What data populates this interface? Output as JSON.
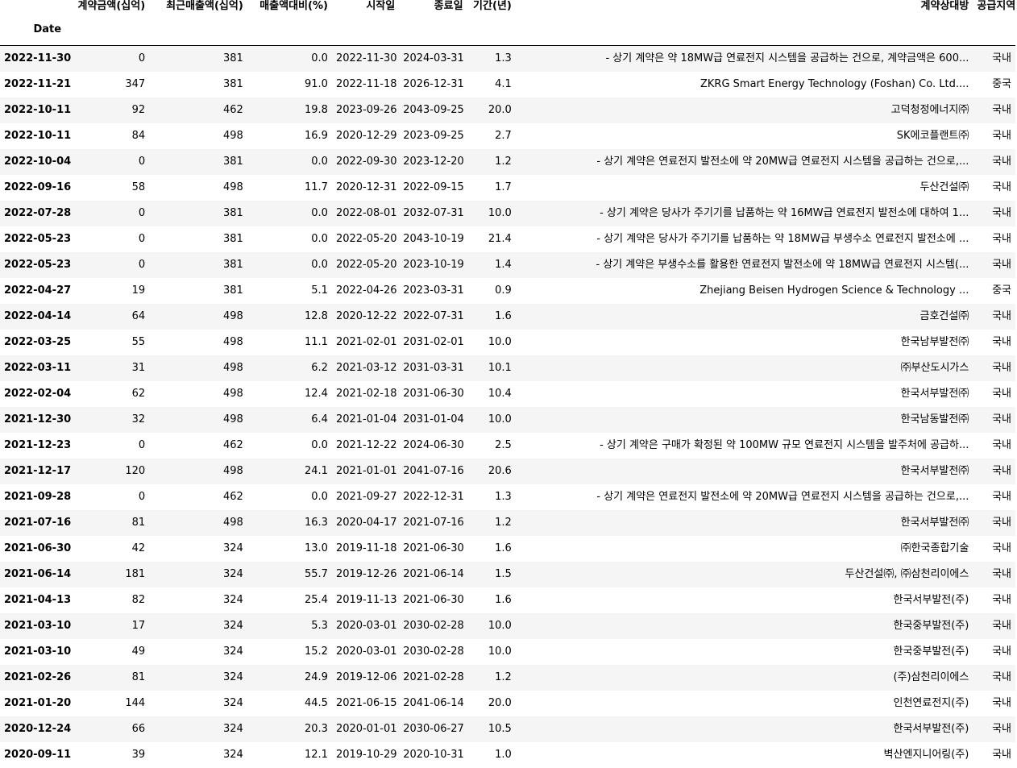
{
  "table": {
    "columns": [
      "계약금액(십억)",
      "최근매출액(십억)",
      "매출액대비(%)",
      "시작일",
      "종료일",
      "기간(년)",
      "계약상대방",
      "공급지역"
    ],
    "index_name": "Date",
    "rows": [
      [
        "2022-11-30",
        "0",
        "381",
        "0.0",
        "2022-11-30",
        "2024-03-31",
        "1.3",
        "- 상기 계약은 약 18MW급 연료전지 시스템을 공급하는 건으로, 계약금액은 600...",
        "국내"
      ],
      [
        "2022-11-21",
        "347",
        "381",
        "91.0",
        "2022-11-18",
        "2026-12-31",
        "4.1",
        "ZKRG Smart Energy Technology (Foshan) Co. Ltd....",
        "중국"
      ],
      [
        "2022-10-11",
        "92",
        "462",
        "19.8",
        "2023-09-26",
        "2043-09-25",
        "20.0",
        "고덕청정에너지㈜",
        "국내"
      ],
      [
        "2022-10-11",
        "84",
        "498",
        "16.9",
        "2020-12-29",
        "2023-09-25",
        "2.7",
        "SK에코플랜트㈜",
        "국내"
      ],
      [
        "2022-10-04",
        "0",
        "381",
        "0.0",
        "2022-09-30",
        "2023-12-20",
        "1.2",
        "- 상기 계약은 연료전지 발전소에 약 20MW급 연료전지 시스템을 공급하는 건으로,...",
        "국내"
      ],
      [
        "2022-09-16",
        "58",
        "498",
        "11.7",
        "2020-12-31",
        "2022-09-15",
        "1.7",
        "두산건설㈜",
        "국내"
      ],
      [
        "2022-07-28",
        "0",
        "381",
        "0.0",
        "2022-08-01",
        "2032-07-31",
        "10.0",
        "- 상기 계약은 당사가 주기기를 납품하는 약 16MW급 연료전지 발전소에 대하여 1...",
        "국내"
      ],
      [
        "2022-05-23",
        "0",
        "381",
        "0.0",
        "2022-05-20",
        "2043-10-19",
        "21.4",
        "- 상기 계약은 당사가 주기기를 납품하는 약 18MW급 부생수소 연료전지 발전소에 ...",
        "국내"
      ],
      [
        "2022-05-23",
        "0",
        "381",
        "0.0",
        "2022-05-20",
        "2023-10-19",
        "1.4",
        "- 상기 계약은 부생수소를 활용한 연료전지 발전소에 약 18MW급 연료전지 시스템(...",
        "국내"
      ],
      [
        "2022-04-27",
        "19",
        "381",
        "5.1",
        "2022-04-26",
        "2023-03-31",
        "0.9",
        "Zhejiang Beisen Hydrogen Science & Technology ...",
        "중국"
      ],
      [
        "2022-04-14",
        "64",
        "498",
        "12.8",
        "2020-12-22",
        "2022-07-31",
        "1.6",
        "금호건설㈜",
        "국내"
      ],
      [
        "2022-03-25",
        "55",
        "498",
        "11.1",
        "2021-02-01",
        "2031-02-01",
        "10.0",
        "한국남부발전㈜",
        "국내"
      ],
      [
        "2022-03-11",
        "31",
        "498",
        "6.2",
        "2021-03-12",
        "2031-03-31",
        "10.1",
        "㈜부산도시가스",
        "국내"
      ],
      [
        "2022-02-04",
        "62",
        "498",
        "12.4",
        "2021-02-18",
        "2031-06-30",
        "10.4",
        "한국서부발전㈜",
        "국내"
      ],
      [
        "2021-12-30",
        "32",
        "498",
        "6.4",
        "2021-01-04",
        "2031-01-04",
        "10.0",
        "한국남동발전㈜",
        "국내"
      ],
      [
        "2021-12-23",
        "0",
        "462",
        "0.0",
        "2021-12-22",
        "2024-06-30",
        "2.5",
        "- 상기 계약은 구매가 확정된 약 100MW 규모 연료전지 시스템을 발주처에 공급하...",
        "국내"
      ],
      [
        "2021-12-17",
        "120",
        "498",
        "24.1",
        "2021-01-01",
        "2041-07-16",
        "20.6",
        "한국서부발전㈜",
        "국내"
      ],
      [
        "2021-09-28",
        "0",
        "462",
        "0.0",
        "2021-09-27",
        "2022-12-31",
        "1.3",
        "- 상기 계약은 연료전지 발전소에 약 20MW급 연료전지 시스템을 공급하는 건으로,...",
        "국내"
      ],
      [
        "2021-07-16",
        "81",
        "498",
        "16.3",
        "2020-04-17",
        "2021-07-16",
        "1.2",
        "한국서부발전㈜",
        "국내"
      ],
      [
        "2021-06-30",
        "42",
        "324",
        "13.0",
        "2019-11-18",
        "2021-06-30",
        "1.6",
        "㈜한국종합기술",
        "국내"
      ],
      [
        "2021-06-14",
        "181",
        "324",
        "55.7",
        "2019-12-26",
        "2021-06-14",
        "1.5",
        "두산건설㈜, ㈜삼천리이에스",
        "국내"
      ],
      [
        "2021-04-13",
        "82",
        "324",
        "25.4",
        "2019-11-13",
        "2021-06-30",
        "1.6",
        "한국서부발전(주)",
        "국내"
      ],
      [
        "2021-03-10",
        "17",
        "324",
        "5.3",
        "2020-03-01",
        "2030-02-28",
        "10.0",
        "한국중부발전(주)",
        "국내"
      ],
      [
        "2021-03-10",
        "49",
        "324",
        "15.2",
        "2020-03-01",
        "2030-02-28",
        "10.0",
        "한국중부발전(주)",
        "국내"
      ],
      [
        "2021-02-26",
        "81",
        "324",
        "24.9",
        "2019-12-06",
        "2021-02-28",
        "1.2",
        "(주)삼천리이에스",
        "국내"
      ],
      [
        "2021-01-20",
        "144",
        "324",
        "44.5",
        "2021-06-15",
        "2041-06-14",
        "20.0",
        "인천연료전지(주)",
        "국내"
      ],
      [
        "2020-12-24",
        "66",
        "324",
        "20.3",
        "2020-01-01",
        "2030-06-27",
        "10.5",
        "한국서부발전(주)",
        "국내"
      ],
      [
        "2020-09-11",
        "39",
        "324",
        "12.1",
        "2019-10-29",
        "2020-10-31",
        "1.0",
        "벽산엔지니어링(주)",
        "국내"
      ]
    ]
  }
}
